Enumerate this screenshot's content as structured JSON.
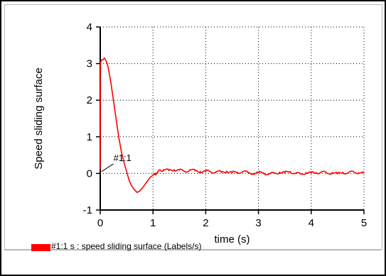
{
  "chart_data": {
    "type": "line",
    "xlabel": "time (s)",
    "ylabel": "Speed sliding surface",
    "xlim": [
      0,
      5
    ],
    "ylim": [
      -1,
      4
    ],
    "x_ticks": [
      "0",
      "1",
      "2",
      "3",
      "4",
      "5"
    ],
    "y_ticks": [
      "-1",
      "0",
      "1",
      "2",
      "3",
      "4"
    ],
    "grid": true,
    "grid_style": "dotted",
    "series": [
      {
        "name": "#1:1 s : speed sliding surface (Labels/s)",
        "color": "#ff0000",
        "x": [
          0,
          0.005,
          0.02,
          0.05,
          0.08,
          0.12,
          0.15,
          0.2,
          0.25,
          0.3,
          0.35,
          0.4,
          0.45,
          0.5,
          0.55,
          0.6,
          0.65,
          0.7,
          0.75,
          0.8,
          0.85,
          0.9,
          0.95,
          1.0,
          1.05,
          1.1,
          1.15,
          1.2,
          1.3,
          1.4,
          1.5,
          1.6,
          1.7,
          1.8,
          1.9,
          2.0,
          2.1,
          2.2,
          2.3,
          2.4,
          2.5,
          2.6,
          2.7,
          2.8,
          2.9,
          3.0,
          3.1,
          3.2,
          3.3,
          3.4,
          3.5,
          3.6,
          3.7,
          3.8,
          3.9,
          4.0,
          4.1,
          4.2,
          4.3,
          4.4,
          4.5,
          4.6,
          4.7,
          4.8,
          4.9,
          5.0
        ],
        "values": [
          0.1,
          3.0,
          3.1,
          3.1,
          3.15,
          3.05,
          2.9,
          2.5,
          2.0,
          1.5,
          1.0,
          0.6,
          0.3,
          0.05,
          -0.2,
          -0.35,
          -0.45,
          -0.52,
          -0.48,
          -0.4,
          -0.3,
          -0.2,
          -0.1,
          -0.05,
          0.0,
          0.05,
          0.08,
          0.1,
          0.08,
          0.1,
          0.09,
          0.05,
          0.1,
          0.07,
          0.05,
          0.06,
          0.04,
          0.05,
          0.03,
          0.06,
          0.02,
          0.03,
          0.05,
          0.02,
          0.0,
          0.02,
          0.01,
          -0.02,
          0.0,
          0.03,
          0.02,
          0.05,
          0.0,
          -0.02,
          0.02,
          0.01,
          0.02,
          0.04,
          0.0,
          0.02,
          -0.01,
          0.03,
          0.0,
          0.05,
          0.02,
          0.0
        ]
      }
    ],
    "annotations": [
      {
        "text": "#1:1",
        "x": 0.52,
        "y": 0.3
      }
    ],
    "legend": {
      "placement": "bottom-left",
      "text": "#1:1 s : speed sliding surface (Labels/s)"
    }
  }
}
